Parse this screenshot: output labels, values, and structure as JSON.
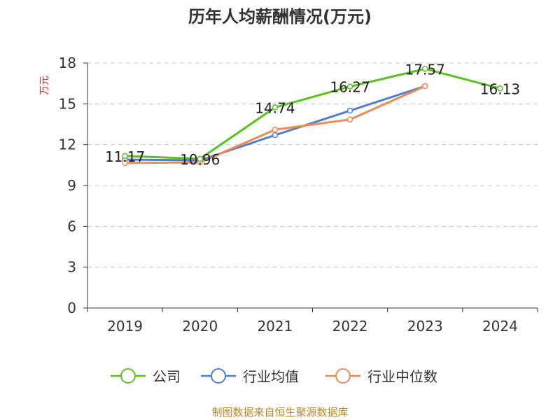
{
  "chart_data": {
    "type": "line",
    "title": "历年人均薪酬情况(万元)",
    "ylabel": "万元",
    "xlabel": "",
    "categories": [
      "2019",
      "2020",
      "2021",
      "2022",
      "2023",
      "2024"
    ],
    "ylim": [
      0,
      18
    ],
    "yticks": [
      0,
      3,
      6,
      9,
      12,
      15,
      18
    ],
    "grid": true,
    "legend_position": "bottom",
    "series": [
      {
        "name": "公司",
        "color": "#5ac21f",
        "values": [
          11.17,
          10.96,
          14.74,
          16.27,
          17.57,
          16.13
        ],
        "data_labels": [
          "11.17",
          "10.96",
          "14.74",
          "16.27",
          "17.57",
          "16.13"
        ]
      },
      {
        "name": "行业均值",
        "color": "#4f7ed6",
        "values": [
          10.9,
          10.85,
          12.7,
          14.5,
          16.3,
          null
        ]
      },
      {
        "name": "行业中位数",
        "color": "#f08a55",
        "values": [
          10.65,
          10.7,
          13.1,
          13.85,
          16.3,
          null
        ]
      }
    ]
  },
  "source": "制图数据来自恒生聚源数据库"
}
